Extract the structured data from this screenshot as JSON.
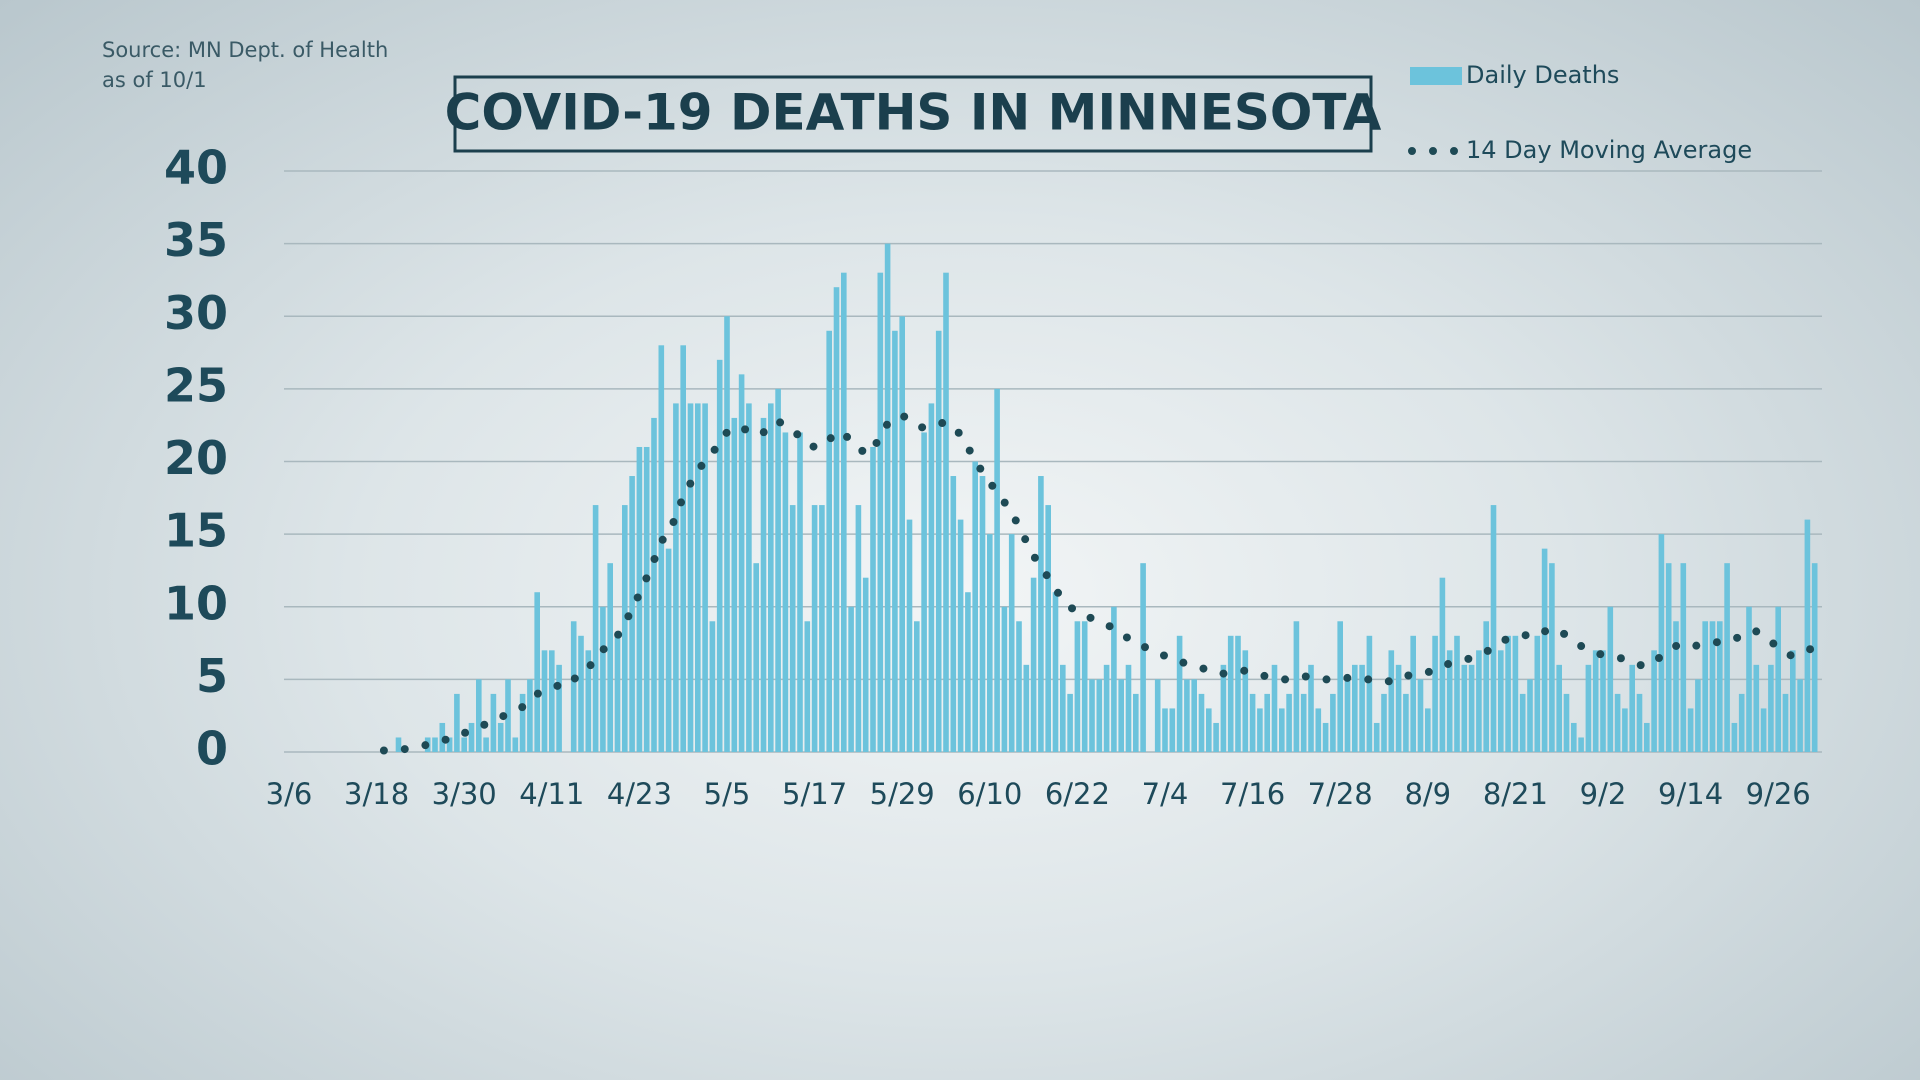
{
  "chart_data": {
    "type": "bar",
    "title": "COVID-19 DEATHS IN MINNESOTA",
    "source": "Source: MN Dept. of Health",
    "as_of": "as of 10/1",
    "categories": [
      "3/6",
      null,
      null,
      null,
      null,
      null,
      null,
      null,
      null,
      null,
      null,
      null,
      "3/18",
      null,
      null,
      null,
      null,
      null,
      null,
      null,
      null,
      null,
      null,
      null,
      "3/30",
      null,
      null,
      null,
      null,
      null,
      null,
      null,
      null,
      null,
      null,
      null,
      "4/11",
      null,
      null,
      null,
      null,
      null,
      null,
      null,
      null,
      null,
      null,
      null,
      "4/23",
      null,
      null,
      null,
      null,
      null,
      null,
      null,
      null,
      null,
      null,
      null,
      "5/5",
      null,
      null,
      null,
      null,
      null,
      null,
      null,
      null,
      null,
      null,
      null,
      "5/17",
      null,
      null,
      null,
      null,
      null,
      null,
      null,
      null,
      null,
      null,
      null,
      "5/29",
      null,
      null,
      null,
      null,
      null,
      null,
      null,
      null,
      null,
      null,
      null,
      "6/10",
      null,
      null,
      null,
      null,
      null,
      null,
      null,
      null,
      null,
      null,
      null,
      "6/22",
      null,
      null,
      null,
      null,
      null,
      null,
      null,
      null,
      null,
      null,
      null,
      "7/4",
      null,
      null,
      null,
      null,
      null,
      null,
      null,
      null,
      null,
      null,
      null,
      "7/16",
      null,
      null,
      null,
      null,
      null,
      null,
      null,
      null,
      null,
      null,
      null,
      "7/28",
      null,
      null,
      null,
      null,
      null,
      null,
      null,
      null,
      null,
      null,
      null,
      "8/9",
      null,
      null,
      null,
      null,
      null,
      null,
      null,
      null,
      null,
      null,
      null,
      "8/21",
      null,
      null,
      null,
      null,
      null,
      null,
      null,
      null,
      null,
      null,
      null,
      "9/2",
      null,
      null,
      null,
      null,
      null,
      null,
      null,
      null,
      null,
      null,
      null,
      "9/14",
      null,
      null,
      null,
      null,
      null,
      null,
      null,
      null,
      null,
      null,
      null,
      "9/26",
      null,
      null,
      null,
      null,
      null
    ],
    "series": [
      {
        "name": "Daily Deaths",
        "type": "bar",
        "color": "#6cc3dc",
        "values": [
          0,
          0,
          0,
          0,
          0,
          0,
          0,
          0,
          0,
          0,
          0,
          0,
          0,
          0,
          0,
          1,
          0,
          0,
          0,
          1,
          1,
          2,
          1,
          4,
          1,
          2,
          5,
          1,
          4,
          2,
          5,
          1,
          4,
          5,
          11,
          7,
          7,
          6,
          0,
          9,
          8,
          7,
          17,
          10,
          13,
          8,
          17,
          19,
          21,
          21,
          23,
          28,
          14,
          24,
          28,
          24,
          24,
          24,
          9,
          27,
          30,
          23,
          26,
          24,
          13,
          23,
          24,
          25,
          22,
          17,
          22,
          9,
          17,
          17,
          29,
          32,
          33,
          10,
          17,
          12,
          21,
          33,
          35,
          29,
          30,
          16,
          9,
          22,
          24,
          29,
          33,
          19,
          16,
          11,
          20,
          19,
          15,
          25,
          10,
          15,
          9,
          6,
          12,
          19,
          17,
          11,
          6,
          4,
          9,
          9,
          5,
          5,
          6,
          10,
          5,
          6,
          4,
          13,
          0,
          5,
          3,
          3,
          8,
          5,
          5,
          4,
          3,
          2,
          6,
          8,
          8,
          7,
          4,
          3,
          4,
          6,
          3,
          4,
          9,
          4,
          6,
          3,
          2,
          4,
          9,
          5,
          6,
          6,
          8,
          2,
          4,
          7,
          6,
          4,
          8,
          5,
          3,
          8,
          12,
          7,
          8,
          6,
          6,
          7,
          9,
          17,
          7,
          8,
          8,
          4,
          5,
          8,
          14,
          13,
          6,
          4,
          2,
          1,
          6,
          7,
          7,
          10,
          4,
          3,
          6,
          4,
          2,
          7,
          15,
          13,
          9,
          13,
          3,
          5,
          9,
          9,
          9,
          13,
          2,
          4,
          10,
          6,
          3,
          6,
          10,
          4,
          7,
          5,
          16,
          13
        ]
      },
      {
        "name": "14 Day Moving Average",
        "type": "line",
        "color": "#1e4a55",
        "values": [
          null,
          null,
          null,
          null,
          null,
          null,
          null,
          null,
          null,
          null,
          null,
          null,
          null,
          0.1,
          0.1,
          0.2,
          0.2,
          0.3,
          0.4,
          0.5,
          0.6,
          0.8,
          0.9,
          1.2,
          1.3,
          1.5,
          1.8,
          1.9,
          2.2,
          2.4,
          2.6,
          2.9,
          3.1,
          3.4,
          4.0,
          4.2,
          4.4,
          4.6,
          4.5,
          5.0,
          5.4,
          5.7,
          6.6,
          7.0,
          7.7,
          8.0,
          8.9,
          9.8,
          10.9,
          12.0,
          13.2,
          14.5,
          15.1,
          16.2,
          17.6,
          18.5,
          19.4,
          20.0,
          20.5,
          21.5,
          22.0,
          22.3,
          22.4,
          22.0,
          21.8,
          22.0,
          22.5,
          22.8,
          22.4,
          22.0,
          21.8,
          21.2,
          21.0,
          21.0,
          21.5,
          22.0,
          22.0,
          21.3,
          21.0,
          20.5,
          20.8,
          21.8,
          22.6,
          23.0,
          23.2,
          22.8,
          22.5,
          22.3,
          22.4,
          22.6,
          22.7,
          22.5,
          21.8,
          21.0,
          20.0,
          19.3,
          18.5,
          18.0,
          17.2,
          16.5,
          15.5,
          14.5,
          13.5,
          12.8,
          12.0,
          11.2,
          10.5,
          10.0,
          9.6,
          9.4,
          9.2,
          9.0,
          8.7,
          8.6,
          8.2,
          7.8,
          7.4,
          7.3,
          7.0,
          6.9,
          6.6,
          6.3,
          6.2,
          6.1,
          6.0,
          5.8,
          5.6,
          5.4,
          5.4,
          5.5,
          5.6,
          5.6,
          5.4,
          5.3,
          5.2,
          5.1,
          5.0,
          5.0,
          5.1,
          5.2,
          5.2,
          5.1,
          5.0,
          5.0,
          5.1,
          5.1,
          5.1,
          5.0,
          5.0,
          4.9,
          4.8,
          4.9,
          5.2,
          5.2,
          5.4,
          5.5,
          5.5,
          5.6,
          5.9,
          6.1,
          6.2,
          6.3,
          6.5,
          6.7,
          6.9,
          7.2,
          7.6,
          7.8,
          8.0,
          8.0,
          8.1,
          8.0,
          8.3,
          8.5,
          8.4,
          8.0,
          7.6,
          7.3,
          7.0,
          6.8,
          6.7,
          6.6,
          6.5,
          6.4,
          6.2,
          6.0,
          5.9,
          6.2,
          6.6,
          7.0,
          7.3,
          7.5,
          7.4,
          7.3,
          7.4,
          7.5,
          7.6,
          7.8,
          7.9,
          7.8,
          8.0,
          8.3,
          8.0,
          7.6,
          7.2,
          6.8,
          6.6,
          6.8,
          7.0,
          7.2
        ]
      }
    ],
    "ylim": [
      0,
      40
    ],
    "yticks": [
      0,
      5,
      10,
      15,
      20,
      25,
      30,
      35,
      40
    ],
    "grid": true,
    "legend": "top-right"
  }
}
